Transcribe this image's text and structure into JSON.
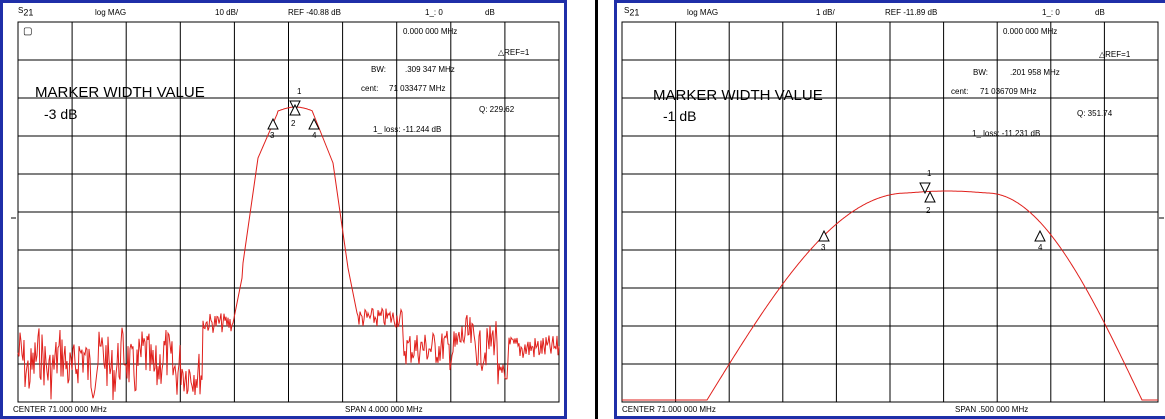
{
  "left": {
    "header": {
      "param": "S",
      "param_sub": "21",
      "format": "log MAG",
      "scale": "10 dB/",
      "ref": "REF -40.88 dB",
      "marker_idx": "1_: 0",
      "marker_unit": "dB"
    },
    "marker_freq": "0.000 000 MHz",
    "ref_marker": "REF=1",
    "bw_label": "BW:",
    "bw_value": ".309 347 MHz",
    "cent_label": "cent:",
    "cent_value": "71 033477 MHz",
    "q_value": "Q: 229.62",
    "loss_value": "1_ loss: -11.244 dB",
    "title": "MARKER WIDTH VALUE",
    "width_value": "-3 dB",
    "stop_icon": "▢",
    "footer": {
      "center": "CENTER   71.000 000 MHz",
      "span": "SPAN        4.000 000 MHz"
    },
    "markers": [
      "1",
      "2",
      "3",
      "4"
    ]
  },
  "right": {
    "header": {
      "param": "S",
      "param_sub": "21",
      "format": "log MAG",
      "scale": "1 dB/",
      "ref": "REF -11.89 dB",
      "marker_idx": "1_: 0",
      "marker_unit": "dB"
    },
    "marker_freq": "0.000 000 MHz",
    "ref_marker": "REF=1",
    "bw_label": "BW:",
    "bw_value": ".201 958 MHz",
    "cent_label": "cent:",
    "cent_value": "71 036709 MHz",
    "q_value": "Q: 351.74",
    "loss_value": "1_ loss: -11.231 dB",
    "title": "MARKER WIDTH VALUE",
    "width_value": "-1 dB",
    "footer": {
      "center": "CENTER   71.000 000 MHz",
      "span": "SPAN     .500 000 MHz"
    },
    "markers": [
      "1",
      "2",
      "3",
      "4"
    ]
  },
  "trace_color": "#e0201c",
  "grid_color": "#000000"
}
